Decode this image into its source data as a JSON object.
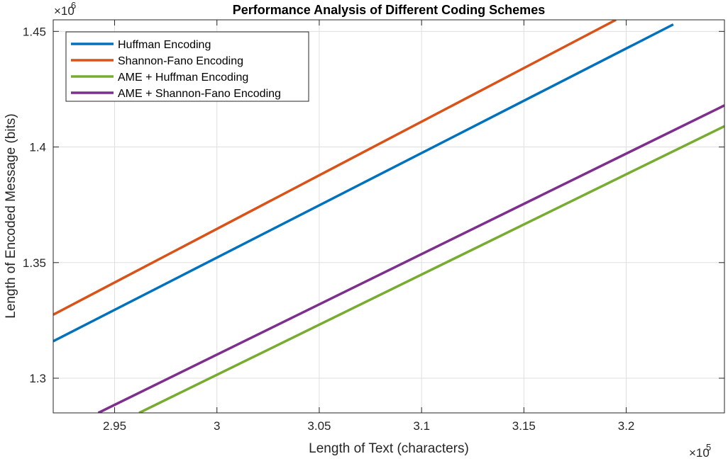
{
  "chart_data": {
    "type": "line",
    "title": "Performance Analysis of Different Coding Schemes",
    "xlabel": "Length of Text (characters)",
    "ylabel": "Length of Encoded Message (bits)",
    "x_exponent_base": "×10",
    "x_exponent_power": "5",
    "y_exponent_base": "×10",
    "y_exponent_power": "6",
    "xlim": [
      292000,
      324800
    ],
    "ylim": [
      1285000,
      1455000
    ],
    "xticks": [
      295000,
      300000,
      305000,
      310000,
      315000,
      320000
    ],
    "xtick_labels": [
      "2.95",
      "3",
      "3.05",
      "3.1",
      "3.15",
      "3.2"
    ],
    "yticks": [
      1300000,
      1350000,
      1400000,
      1450000
    ],
    "ytick_labels": [
      "1.3",
      "1.35",
      "1.4",
      "1.45"
    ],
    "grid": true,
    "legend_position": "top-left",
    "series": [
      {
        "name": "Huffman Encoding",
        "color": "#0072BD",
        "x": [
          292000,
          322300
        ],
        "y": [
          1316000,
          1453000
        ]
      },
      {
        "name": "Shannon-Fano Encoding",
        "color": "#D95319",
        "x": [
          292000,
          319500
        ],
        "y": [
          1327500,
          1455000
        ]
      },
      {
        "name": "AME + Huffman Encoding",
        "color": "#77AC30",
        "x": [
          296200,
          324800
        ],
        "y": [
          1285000,
          1409000
        ]
      },
      {
        "name": "AME + Shannon-Fano Encoding",
        "color": "#7E2F8E",
        "x": [
          294200,
          324800
        ],
        "y": [
          1285000,
          1418000
        ]
      }
    ]
  }
}
